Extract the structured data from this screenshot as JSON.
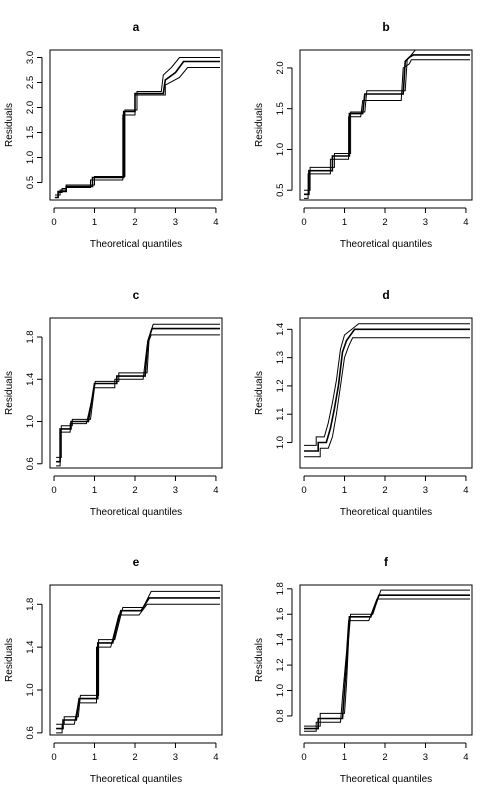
{
  "chart_data": [
    {
      "type": "line",
      "title": "a",
      "xlabel": "Theoretical quantiles",
      "ylabel": "Residuals",
      "xlim": [
        -0.1,
        4.15
      ],
      "ylim": [
        0.15,
        3.15
      ],
      "xticks": [
        0,
        1,
        2,
        3,
        4
      ],
      "yticks": [
        0.5,
        1.0,
        1.5,
        2.0,
        2.5,
        3.0
      ],
      "ytick_labels": [
        "0.5",
        "1.0",
        "1.5",
        "2.0",
        "2.5",
        "3.0"
      ],
      "series": [
        {
          "values": [
            [
              0.02,
              0.2
            ],
            [
              0.1,
              0.2
            ],
            [
              0.1,
              0.3
            ],
            [
              0.2,
              0.3
            ],
            [
              0.2,
              0.38
            ],
            [
              0.3,
              0.38
            ],
            [
              0.3,
              0.4
            ],
            [
              0.9,
              0.4
            ],
            [
              0.9,
              0.55
            ],
            [
              1.7,
              0.55
            ],
            [
              1.7,
              1.85
            ],
            [
              2.0,
              1.85
            ],
            [
              2.0,
              2.25
            ],
            [
              2.75,
              2.25
            ],
            [
              2.75,
              2.45
            ],
            [
              3.1,
              2.6
            ],
            [
              3.3,
              2.8
            ],
            [
              4.1,
              2.8
            ]
          ]
        },
        {
          "values": [
            [
              0.02,
              0.2
            ],
            [
              0.1,
              0.2
            ],
            [
              0.1,
              0.32
            ],
            [
              0.3,
              0.32
            ],
            [
              0.3,
              0.42
            ],
            [
              0.95,
              0.42
            ],
            [
              0.95,
              0.6
            ],
            [
              1.72,
              0.6
            ],
            [
              1.72,
              1.92
            ],
            [
              2.0,
              1.92
            ],
            [
              2.0,
              2.28
            ],
            [
              2.7,
              2.28
            ],
            [
              2.75,
              2.55
            ],
            [
              3.0,
              2.7
            ],
            [
              3.2,
              2.92
            ],
            [
              4.1,
              2.92
            ]
          ]
        },
        {
          "values": [
            [
              0.02,
              0.25
            ],
            [
              0.15,
              0.25
            ],
            [
              0.15,
              0.35
            ],
            [
              0.3,
              0.35
            ],
            [
              0.3,
              0.45
            ],
            [
              1.0,
              0.45
            ],
            [
              1.0,
              0.62
            ],
            [
              1.75,
              0.62
            ],
            [
              1.75,
              1.95
            ],
            [
              2.05,
              1.95
            ],
            [
              2.05,
              2.32
            ],
            [
              2.65,
              2.32
            ],
            [
              2.7,
              2.65
            ],
            [
              2.9,
              2.8
            ],
            [
              3.1,
              3.0
            ],
            [
              4.1,
              3.0
            ]
          ]
        }
      ]
    },
    {
      "type": "line",
      "title": "b",
      "xlabel": "Theoretical quantiles",
      "ylabel": "Residuals",
      "xlim": [
        -0.1,
        4.15
      ],
      "ylim": [
        0.38,
        2.22
      ],
      "xticks": [
        0,
        1,
        2,
        3,
        4
      ],
      "yticks": [
        0.5,
        1.0,
        1.5,
        2.0
      ],
      "ytick_labels": [
        "0.5",
        "1.0",
        "1.5",
        "2.0"
      ],
      "series": [
        {
          "values": [
            [
              0.0,
              0.4
            ],
            [
              0.1,
              0.4
            ],
            [
              0.1,
              0.7
            ],
            [
              0.65,
              0.7
            ],
            [
              0.65,
              0.88
            ],
            [
              1.1,
              0.88
            ],
            [
              1.1,
              1.4
            ],
            [
              1.4,
              1.4
            ],
            [
              1.45,
              1.6
            ],
            [
              2.4,
              1.6
            ],
            [
              2.45,
              2.0
            ],
            [
              2.6,
              2.05
            ],
            [
              2.65,
              2.1
            ],
            [
              4.1,
              2.1
            ]
          ]
        },
        {
          "values": [
            [
              0.0,
              0.45
            ],
            [
              0.12,
              0.45
            ],
            [
              0.12,
              0.74
            ],
            [
              0.7,
              0.74
            ],
            [
              0.7,
              0.92
            ],
            [
              1.12,
              0.92
            ],
            [
              1.12,
              1.44
            ],
            [
              1.45,
              1.44
            ],
            [
              1.5,
              1.68
            ],
            [
              2.45,
              1.68
            ],
            [
              2.5,
              2.08
            ],
            [
              2.6,
              2.13
            ],
            [
              2.7,
              2.16
            ],
            [
              4.1,
              2.16
            ]
          ]
        },
        {
          "values": [
            [
              0.0,
              0.5
            ],
            [
              0.15,
              0.5
            ],
            [
              0.15,
              0.78
            ],
            [
              0.75,
              0.78
            ],
            [
              0.75,
              0.95
            ],
            [
              1.15,
              0.95
            ],
            [
              1.15,
              1.46
            ],
            [
              1.5,
              1.46
            ],
            [
              1.55,
              1.72
            ],
            [
              2.5,
              1.72
            ],
            [
              2.55,
              2.1
            ],
            [
              2.65,
              2.16
            ],
            [
              2.75,
              2.22
            ],
            [
              4.1,
              2.22
            ]
          ]
        }
      ]
    },
    {
      "type": "line",
      "title": "c",
      "xlabel": "Theoretical quantiles",
      "ylabel": "Residuals",
      "xlim": [
        -0.1,
        4.15
      ],
      "ylim": [
        0.56,
        1.98
      ],
      "xticks": [
        0,
        1,
        2,
        3,
        4
      ],
      "yticks": [
        0.6,
        1.0,
        1.4,
        1.8
      ],
      "ytick_labels": [
        "0.6",
        "1.0",
        "1.4",
        "1.8"
      ],
      "series": [
        {
          "values": [
            [
              0.05,
              0.58
            ],
            [
              0.15,
              0.58
            ],
            [
              0.15,
              0.9
            ],
            [
              0.4,
              0.9
            ],
            [
              0.4,
              0.98
            ],
            [
              0.8,
              0.98
            ],
            [
              1.0,
              1.32
            ],
            [
              1.5,
              1.32
            ],
            [
              1.5,
              1.4
            ],
            [
              2.2,
              1.4
            ],
            [
              2.3,
              1.72
            ],
            [
              2.4,
              1.82
            ],
            [
              4.1,
              1.82
            ]
          ]
        },
        {
          "values": [
            [
              0.05,
              0.62
            ],
            [
              0.15,
              0.62
            ],
            [
              0.15,
              0.93
            ],
            [
              0.42,
              0.93
            ],
            [
              0.42,
              1.0
            ],
            [
              0.85,
              1.0
            ],
            [
              1.0,
              1.36
            ],
            [
              1.55,
              1.36
            ],
            [
              1.55,
              1.43
            ],
            [
              2.25,
              1.43
            ],
            [
              2.32,
              1.76
            ],
            [
              2.42,
              1.88
            ],
            [
              4.1,
              1.88
            ]
          ]
        },
        {
          "values": [
            [
              0.05,
              0.66
            ],
            [
              0.18,
              0.66
            ],
            [
              0.18,
              0.96
            ],
            [
              0.45,
              0.96
            ],
            [
              0.45,
              1.02
            ],
            [
              0.9,
              1.02
            ],
            [
              1.02,
              1.38
            ],
            [
              1.6,
              1.38
            ],
            [
              1.6,
              1.46
            ],
            [
              2.3,
              1.46
            ],
            [
              2.35,
              1.8
            ],
            [
              2.45,
              1.92
            ],
            [
              4.1,
              1.92
            ]
          ]
        }
      ]
    },
    {
      "type": "line",
      "title": "d",
      "xlabel": "Theoretical quantiles",
      "ylabel": "Residuals",
      "xlim": [
        -0.1,
        4.15
      ],
      "ylim": [
        0.91,
        1.44
      ],
      "xticks": [
        0,
        1,
        2,
        3,
        4
      ],
      "yticks": [
        1.0,
        1.1,
        1.2,
        1.3,
        1.4
      ],
      "ytick_labels": [
        "1.0",
        "1.1",
        "1.2",
        "1.3",
        "1.4"
      ],
      "series": [
        {
          "values": [
            [
              0.0,
              0.95
            ],
            [
              0.4,
              0.95
            ],
            [
              0.4,
              0.98
            ],
            [
              0.6,
              0.98
            ],
            [
              0.7,
              1.02
            ],
            [
              0.8,
              1.1
            ],
            [
              0.9,
              1.2
            ],
            [
              1.0,
              1.3
            ],
            [
              1.1,
              1.34
            ],
            [
              1.2,
              1.37
            ],
            [
              4.1,
              1.37
            ]
          ]
        },
        {
          "values": [
            [
              0.0,
              0.97
            ],
            [
              0.35,
              0.97
            ],
            [
              0.35,
              1.0
            ],
            [
              0.55,
              1.0
            ],
            [
              0.65,
              1.05
            ],
            [
              0.75,
              1.12
            ],
            [
              0.85,
              1.2
            ],
            [
              0.95,
              1.32
            ],
            [
              1.05,
              1.36
            ],
            [
              1.25,
              1.4
            ],
            [
              4.1,
              1.4
            ]
          ]
        },
        {
          "values": [
            [
              0.0,
              0.99
            ],
            [
              0.3,
              0.99
            ],
            [
              0.3,
              1.02
            ],
            [
              0.5,
              1.02
            ],
            [
              0.6,
              1.07
            ],
            [
              0.7,
              1.14
            ],
            [
              0.8,
              1.22
            ],
            [
              0.9,
              1.33
            ],
            [
              1.0,
              1.38
            ],
            [
              1.35,
              1.42
            ],
            [
              4.1,
              1.42
            ]
          ]
        }
      ]
    },
    {
      "type": "line",
      "title": "e",
      "xlabel": "Theoretical quantiles",
      "ylabel": "Residuals",
      "xlim": [
        -0.1,
        4.15
      ],
      "ylim": [
        0.58,
        1.98
      ],
      "xticks": [
        0,
        1,
        2,
        3,
        4
      ],
      "yticks": [
        0.6,
        1.0,
        1.4,
        1.8
      ],
      "ytick_labels": [
        "0.6",
        "1.0",
        "1.4",
        "1.8"
      ],
      "series": [
        {
          "values": [
            [
              0.05,
              0.6
            ],
            [
              0.2,
              0.6
            ],
            [
              0.2,
              0.68
            ],
            [
              0.5,
              0.68
            ],
            [
              0.6,
              0.88
            ],
            [
              1.05,
              0.88
            ],
            [
              1.05,
              1.4
            ],
            [
              1.4,
              1.4
            ],
            [
              1.6,
              1.7
            ],
            [
              2.1,
              1.7
            ],
            [
              2.3,
              1.8
            ],
            [
              4.1,
              1.8
            ]
          ]
        },
        {
          "values": [
            [
              0.05,
              0.64
            ],
            [
              0.22,
              0.64
            ],
            [
              0.22,
              0.72
            ],
            [
              0.55,
              0.72
            ],
            [
              0.62,
              0.92
            ],
            [
              1.08,
              0.92
            ],
            [
              1.08,
              1.44
            ],
            [
              1.45,
              1.44
            ],
            [
              1.65,
              1.74
            ],
            [
              2.15,
              1.74
            ],
            [
              2.35,
              1.86
            ],
            [
              4.1,
              1.86
            ]
          ]
        },
        {
          "values": [
            [
              0.05,
              0.68
            ],
            [
              0.25,
              0.68
            ],
            [
              0.25,
              0.75
            ],
            [
              0.6,
              0.75
            ],
            [
              0.65,
              0.95
            ],
            [
              1.1,
              0.95
            ],
            [
              1.1,
              1.47
            ],
            [
              1.5,
              1.47
            ],
            [
              1.7,
              1.77
            ],
            [
              2.2,
              1.77
            ],
            [
              2.4,
              1.92
            ],
            [
              4.1,
              1.92
            ]
          ]
        }
      ]
    },
    {
      "type": "line",
      "title": "f",
      "xlabel": "Theoretical quantiles",
      "ylabel": "Residuals",
      "xlim": [
        -0.1,
        4.15
      ],
      "ylim": [
        0.65,
        1.83
      ],
      "xticks": [
        0,
        1,
        2,
        3,
        4
      ],
      "yticks": [
        0.8,
        1.0,
        1.2,
        1.4,
        1.6,
        1.8
      ],
      "ytick_labels": [
        "0.8",
        "1.0",
        "1.2",
        "1.4",
        "1.6",
        "1.8"
      ],
      "series": [
        {
          "values": [
            [
              0.0,
              0.68
            ],
            [
              0.3,
              0.68
            ],
            [
              0.3,
              0.75
            ],
            [
              0.9,
              0.75
            ],
            [
              0.95,
              0.95
            ],
            [
              1.05,
              1.3
            ],
            [
              1.1,
              1.55
            ],
            [
              1.6,
              1.55
            ],
            [
              1.8,
              1.72
            ],
            [
              4.1,
              1.72
            ]
          ]
        },
        {
          "values": [
            [
              0.0,
              0.7
            ],
            [
              0.35,
              0.7
            ],
            [
              0.35,
              0.78
            ],
            [
              0.95,
              0.78
            ],
            [
              1.0,
              1.0
            ],
            [
              1.08,
              1.35
            ],
            [
              1.12,
              1.58
            ],
            [
              1.65,
              1.58
            ],
            [
              1.85,
              1.75
            ],
            [
              4.1,
              1.75
            ]
          ]
        },
        {
          "values": [
            [
              0.0,
              0.72
            ],
            [
              0.4,
              0.72
            ],
            [
              0.4,
              0.82
            ],
            [
              1.0,
              0.82
            ],
            [
              1.05,
              1.05
            ],
            [
              1.1,
              1.4
            ],
            [
              1.15,
              1.6
            ],
            [
              1.7,
              1.6
            ],
            [
              1.9,
              1.79
            ],
            [
              4.1,
              1.79
            ]
          ]
        }
      ]
    }
  ]
}
